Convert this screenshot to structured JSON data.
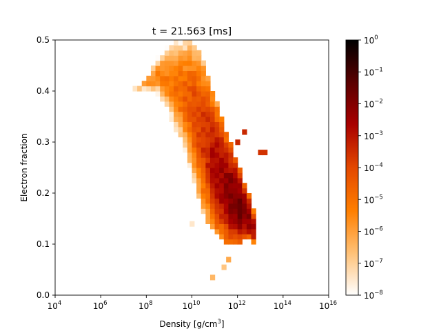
{
  "chart_data": {
    "type": "heatmap",
    "title": "t = 21.563 [ms]",
    "xlabel": "Density [g/cm",
    "xlabel_sup": "3",
    "xlabel_end": "]",
    "ylabel": "Electron fraction",
    "x_scale": "log",
    "xlim": [
      4,
      16
    ],
    "x_ticks": [
      {
        "base": "10",
        "exp": "4",
        "value": 4
      },
      {
        "base": "10",
        "exp": "6",
        "value": 6
      },
      {
        "base": "10",
        "exp": "8",
        "value": 8
      },
      {
        "base": "10",
        "exp": "10",
        "value": 10
      },
      {
        "base": "10",
        "exp": "12",
        "value": 12
      },
      {
        "base": "10",
        "exp": "14",
        "value": 14
      },
      {
        "base": "10",
        "exp": "16",
        "value": 16
      }
    ],
    "ylim": [
      0.0,
      0.5
    ],
    "y_ticks": [
      "0.0",
      "0.1",
      "0.2",
      "0.3",
      "0.4",
      "0.5"
    ],
    "grid": false,
    "colorbar": {
      "scale": "log",
      "colormap": "gist_heat_r",
      "range": [
        -8,
        0
      ],
      "ticks": [
        {
          "base": "10",
          "exp": "0",
          "value": 0
        },
        {
          "base": "10",
          "exp": "−1",
          "value": -1
        },
        {
          "base": "10",
          "exp": "−2",
          "value": -2
        },
        {
          "base": "10",
          "exp": "−3",
          "value": -3
        },
        {
          "base": "10",
          "exp": "−4",
          "value": -4
        },
        {
          "base": "10",
          "exp": "−5",
          "value": -5
        },
        {
          "base": "10",
          "exp": "−6",
          "value": -6
        },
        {
          "base": "10",
          "exp": "−7",
          "value": -7
        },
        {
          "base": "10",
          "exp": "−8",
          "value": -8
        }
      ]
    },
    "cell_size": {
      "log10_density": 0.2,
      "electron_fraction": 0.01
    },
    "ridge": [
      {
        "log10_density": 7.5,
        "ye_low": 0.4,
        "ye_high": 0.41,
        "log10_peak": -7.0
      },
      {
        "log10_density": 8.0,
        "ye_low": 0.4,
        "ye_high": 0.43,
        "log10_peak": -5.8
      },
      {
        "log10_density": 8.5,
        "ye_low": 0.39,
        "ye_high": 0.47,
        "log10_peak": -5.5
      },
      {
        "log10_density": 9.0,
        "ye_low": 0.35,
        "ye_high": 0.5,
        "log10_peak": -5.2
      },
      {
        "log10_density": 9.5,
        "ye_low": 0.3,
        "ye_high": 0.5,
        "log10_peak": -4.8
      },
      {
        "log10_density": 10.0,
        "ye_low": 0.24,
        "ye_high": 0.5,
        "log10_peak": -4.2
      },
      {
        "log10_density": 10.5,
        "ye_low": 0.16,
        "ye_high": 0.46,
        "log10_peak": -3.6
      },
      {
        "log10_density": 11.0,
        "ye_low": 0.12,
        "ye_high": 0.39,
        "log10_peak": -2.8
      },
      {
        "log10_density": 11.5,
        "ye_low": 0.1,
        "ye_high": 0.32,
        "log10_peak": -2.2
      },
      {
        "log10_density": 12.0,
        "ye_low": 0.1,
        "ye_high": 0.26,
        "log10_peak": -1.6
      },
      {
        "log10_density": 12.4,
        "ye_low": 0.11,
        "ye_high": 0.21,
        "log10_peak": -1.8
      },
      {
        "log10_density": 12.7,
        "ye_low": 0.1,
        "ye_high": 0.17,
        "log10_peak": -2.6
      }
    ],
    "outliers": [
      {
        "log10_density": 11.4,
        "electron_fraction": 0.055,
        "log10_value": -6.8
      },
      {
        "log10_density": 10.9,
        "electron_fraction": 0.035,
        "log10_value": -6.5
      },
      {
        "log10_density": 11.6,
        "electron_fraction": 0.07,
        "log10_value": -6.2
      },
      {
        "log10_density": 10.0,
        "electron_fraction": 0.14,
        "log10_value": -7.5
      },
      {
        "log10_density": 12.3,
        "electron_fraction": 0.32,
        "log10_value": -3.4
      },
      {
        "log10_density": 12.0,
        "electron_fraction": 0.3,
        "log10_value": -3.4
      },
      {
        "log10_density": 13.0,
        "electron_fraction": 0.28,
        "log10_value": -3.6
      },
      {
        "log10_density": 13.2,
        "electron_fraction": 0.28,
        "log10_value": -3.6
      }
    ],
    "colors": {
      "cmap_stops": [
        "#ffffff",
        "#ffbf73",
        "#ff7f00",
        "#e34800",
        "#a80000",
        "#5c0000",
        "#000000"
      ]
    }
  }
}
